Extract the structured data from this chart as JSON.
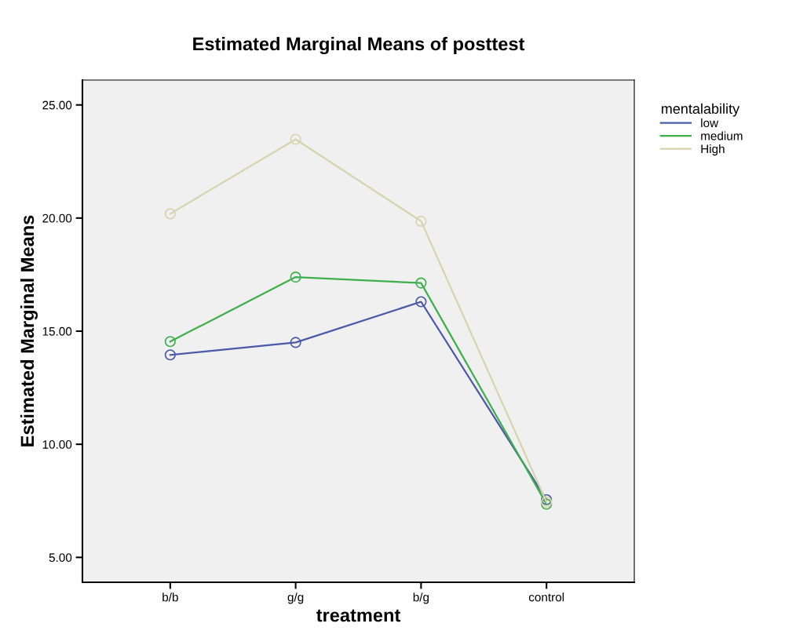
{
  "chart_data": {
    "type": "line",
    "title": "Estimated Marginal Means of posttest",
    "xlabel": "treatment",
    "ylabel": "Estimated Marginal Means",
    "legend_title": "mentalability",
    "categories": [
      "b/b",
      "g/g",
      "b/g",
      "control"
    ],
    "series": [
      {
        "name": "low",
        "color": "#4a5aa8",
        "values": [
          13.95,
          14.5,
          16.3,
          7.55
        ]
      },
      {
        "name": "medium",
        "color": "#3fae4c",
        "values": [
          14.54,
          17.39,
          17.13,
          7.35
        ]
      },
      {
        "name": "High",
        "color": "#d6d4ae",
        "values": [
          20.19,
          23.48,
          19.86,
          7.45
        ]
      }
    ],
    "ylim": [
      3.9,
      26.1
    ],
    "yticks": [
      {
        "value": 5,
        "label": "5.00"
      },
      {
        "value": 10,
        "label": "10.00"
      },
      {
        "value": 15,
        "label": "15.00"
      },
      {
        "value": 20,
        "label": "20.00"
      },
      {
        "value": 25,
        "label": "25.00"
      }
    ],
    "marker": "circle",
    "line_style": "solid",
    "grid": false,
    "legend": "top right"
  }
}
